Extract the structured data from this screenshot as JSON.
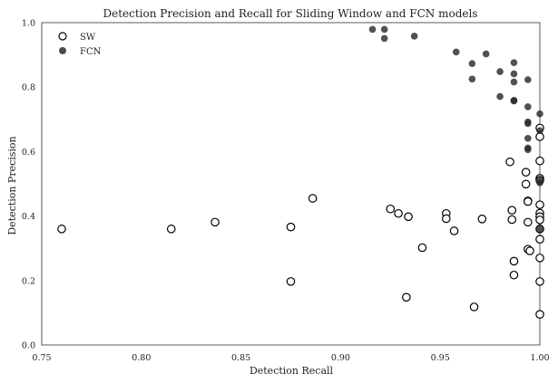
{
  "chart_data": {
    "type": "scatter",
    "title": "Detection Precision and Recall for Sliding Window and FCN models",
    "xlabel": "Detection Recall",
    "ylabel": "Detection Precision",
    "xlim": [
      0.75,
      1.0
    ],
    "ylim": [
      0.0,
      1.0
    ],
    "xticks": [
      "0.75",
      "0.80",
      "0.85",
      "0.90",
      "0.95",
      "1.00"
    ],
    "yticks": [
      "0.0",
      "0.2",
      "0.4",
      "0.6",
      "0.8",
      "1.0"
    ],
    "grid": false,
    "legend_position": "top-left",
    "series": [
      {
        "name": "SW",
        "marker": "hollow-circle",
        "color": "#000000",
        "points": [
          [
            0.76,
            0.36
          ],
          [
            0.815,
            0.36
          ],
          [
            0.837,
            0.381
          ],
          [
            0.875,
            0.366
          ],
          [
            0.875,
            0.197
          ],
          [
            0.886,
            0.455
          ],
          [
            0.925,
            0.422
          ],
          [
            0.929,
            0.408
          ],
          [
            0.934,
            0.398
          ],
          [
            0.941,
            0.302
          ],
          [
            0.933,
            0.148
          ],
          [
            0.953,
            0.408
          ],
          [
            0.953,
            0.392
          ],
          [
            0.957,
            0.354
          ],
          [
            0.967,
            0.118
          ],
          [
            0.971,
            0.391
          ],
          [
            0.985,
            0.568
          ],
          [
            0.986,
            0.418
          ],
          [
            0.986,
            0.389
          ],
          [
            0.987,
            0.26
          ],
          [
            0.987,
            0.217
          ],
          [
            0.993,
            0.536
          ],
          [
            0.993,
            0.499
          ],
          [
            0.994,
            0.447
          ],
          [
            0.994,
            0.445
          ],
          [
            0.994,
            0.381
          ],
          [
            0.994,
            0.297
          ],
          [
            0.995,
            0.292
          ],
          [
            1.0,
            0.673
          ],
          [
            1.0,
            0.646
          ],
          [
            1.0,
            0.571
          ],
          [
            1.0,
            0.517
          ],
          [
            1.0,
            0.511
          ],
          [
            1.0,
            0.435
          ],
          [
            1.0,
            0.409
          ],
          [
            1.0,
            0.398
          ],
          [
            1.0,
            0.388
          ],
          [
            1.0,
            0.36
          ],
          [
            1.0,
            0.328
          ],
          [
            1.0,
            0.27
          ],
          [
            1.0,
            0.197
          ],
          [
            1.0,
            0.095
          ]
        ]
      },
      {
        "name": "FCN",
        "marker": "filled-circle",
        "color": "#2b2b2b",
        "points": [
          [
            0.916,
            0.979
          ],
          [
            0.922,
            0.979
          ],
          [
            0.922,
            0.951
          ],
          [
            0.937,
            0.958
          ],
          [
            0.958,
            0.909
          ],
          [
            0.966,
            0.873
          ],
          [
            0.966,
            0.825
          ],
          [
            0.973,
            0.903
          ],
          [
            0.98,
            0.848
          ],
          [
            0.98,
            0.771
          ],
          [
            0.987,
            0.876
          ],
          [
            0.987,
            0.841
          ],
          [
            0.987,
            0.816
          ],
          [
            0.987,
            0.759
          ],
          [
            0.987,
            0.757
          ],
          [
            0.994,
            0.823
          ],
          [
            0.994,
            0.739
          ],
          [
            0.994,
            0.692
          ],
          [
            0.994,
            0.687
          ],
          [
            0.994,
            0.641
          ],
          [
            0.994,
            0.611
          ],
          [
            0.994,
            0.606
          ],
          [
            1.0,
            0.717
          ],
          [
            1.0,
            0.665
          ],
          [
            1.0,
            0.512
          ],
          [
            1.0,
            0.503
          ],
          [
            1.0,
            0.36
          ]
        ]
      }
    ]
  }
}
